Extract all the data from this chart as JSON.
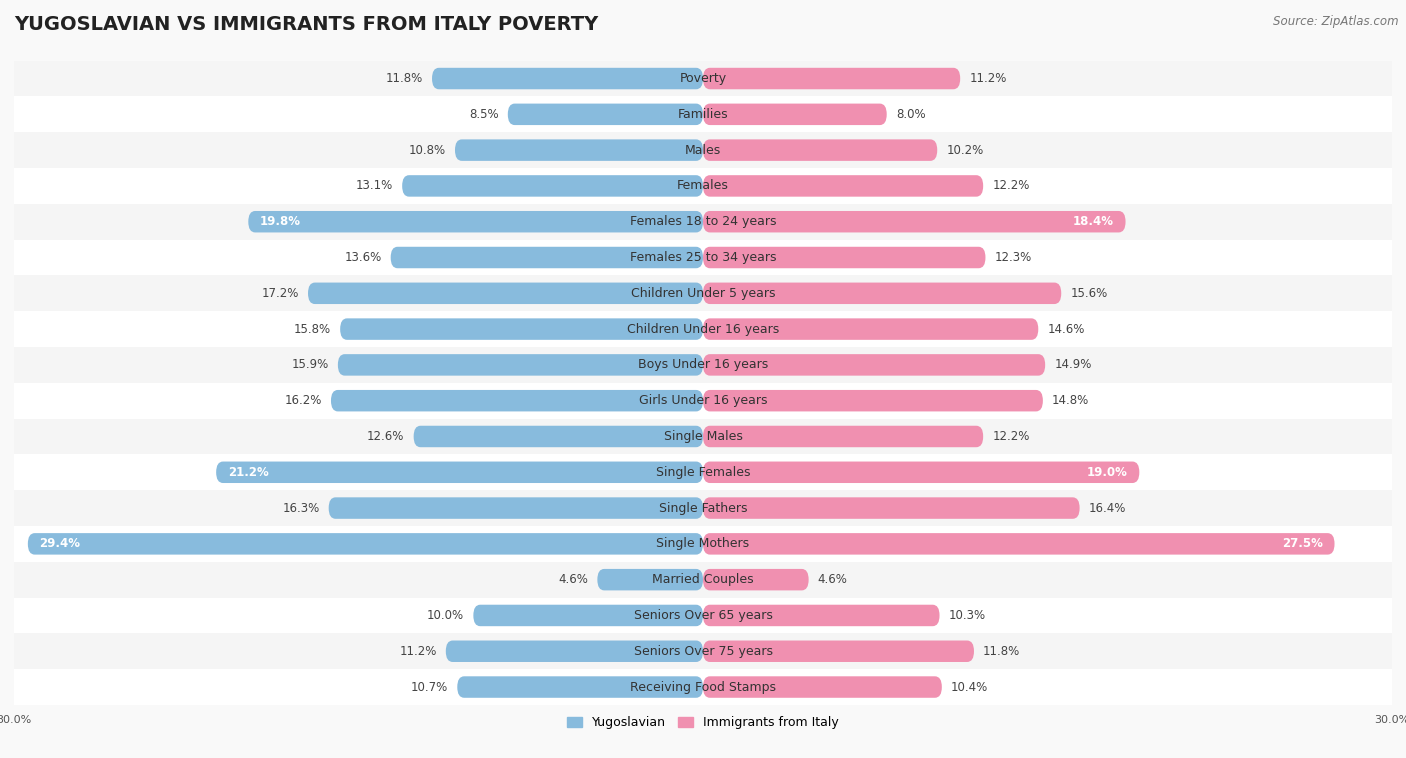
{
  "title": "YUGOSLAVIAN VS IMMIGRANTS FROM ITALY POVERTY",
  "source": "Source: ZipAtlas.com",
  "categories": [
    "Poverty",
    "Families",
    "Males",
    "Females",
    "Females 18 to 24 years",
    "Females 25 to 34 years",
    "Children Under 5 years",
    "Children Under 16 years",
    "Boys Under 16 years",
    "Girls Under 16 years",
    "Single Males",
    "Single Females",
    "Single Fathers",
    "Single Mothers",
    "Married Couples",
    "Seniors Over 65 years",
    "Seniors Over 75 years",
    "Receiving Food Stamps"
  ],
  "left_values": [
    11.8,
    8.5,
    10.8,
    13.1,
    19.8,
    13.6,
    17.2,
    15.8,
    15.9,
    16.2,
    12.6,
    21.2,
    16.3,
    29.4,
    4.6,
    10.0,
    11.2,
    10.7
  ],
  "right_values": [
    11.2,
    8.0,
    10.2,
    12.2,
    18.4,
    12.3,
    15.6,
    14.6,
    14.9,
    14.8,
    12.2,
    19.0,
    16.4,
    27.5,
    4.6,
    10.3,
    11.8,
    10.4
  ],
  "left_color": "#88bbdd",
  "right_color": "#f090b0",
  "left_label": "Yugoslavian",
  "right_label": "Immigrants from Italy",
  "x_max": 30.0,
  "row_bg_odd": "#f5f5f5",
  "row_bg_even": "#ffffff",
  "fig_bg": "#f9f9f9",
  "title_fontsize": 14,
  "cat_fontsize": 9,
  "value_fontsize": 8.5,
  "source_fontsize": 8.5,
  "axis_label_fontsize": 8,
  "bar_height": 0.6,
  "inside_label_threshold": 18.0
}
